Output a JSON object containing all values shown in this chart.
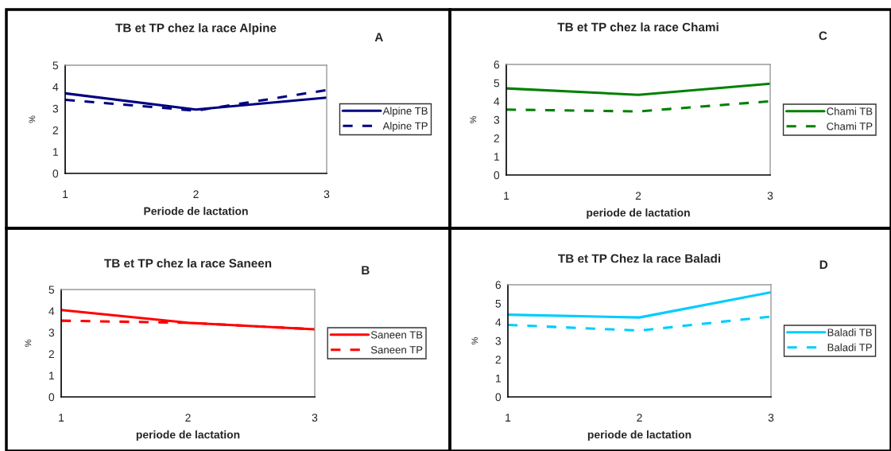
{
  "chart_data": [
    {
      "type": "line",
      "title": "TB et TP chez la race Alpine",
      "xlabel": "Periode de lactation",
      "ylabel": "%",
      "annotations": [
        "A"
      ],
      "x": [
        1,
        2,
        3
      ],
      "xlim": [
        1,
        3
      ],
      "xticks": [
        1,
        2,
        3
      ],
      "ylim": [
        0,
        5
      ],
      "yticks": [
        0,
        1,
        2,
        3,
        4,
        5
      ],
      "legend": "right",
      "series": [
        {
          "name": "Alpine TB",
          "color": "#000080",
          "line_style": "solid",
          "values": [
            3.7,
            2.95,
            3.5
          ]
        },
        {
          "name": "Alpine TP",
          "color": "#000080",
          "line_style": "dashed",
          "values": [
            3.4,
            2.9,
            3.85
          ]
        }
      ]
    },
    {
      "type": "line",
      "title": "TB et TP chez la race Chami",
      "xlabel": "periode de lactation",
      "ylabel": "%",
      "annotations": [
        "C"
      ],
      "x": [
        1,
        2,
        3
      ],
      "xlim": [
        1,
        3
      ],
      "xticks": [
        1,
        2,
        3
      ],
      "ylim": [
        0,
        6
      ],
      "yticks": [
        0,
        1,
        2,
        3,
        4,
        5,
        6
      ],
      "legend": "right",
      "series": [
        {
          "name": "Chami TB",
          "color": "#008000",
          "line_style": "solid",
          "values": [
            4.7,
            4.35,
            4.95
          ]
        },
        {
          "name": "Chami TP",
          "color": "#008000",
          "line_style": "dashed",
          "values": [
            3.55,
            3.45,
            4.0
          ]
        }
      ]
    },
    {
      "type": "line",
      "title": "TB et TP chez la race Saneen",
      "xlabel": "periode de lactation",
      "ylabel": "%",
      "annotations": [
        "B"
      ],
      "x": [
        1,
        2,
        3
      ],
      "xlim": [
        1,
        3
      ],
      "xticks": [
        1,
        2,
        3
      ],
      "ylim": [
        0,
        5
      ],
      "yticks": [
        0,
        1,
        2,
        3,
        4,
        5
      ],
      "legend": "right",
      "series": [
        {
          "name": "Saneen TB",
          "color": "#ff0000",
          "line_style": "solid",
          "values": [
            4.05,
            3.45,
            3.15
          ]
        },
        {
          "name": "Saneen TP",
          "color": "#ff0000",
          "line_style": "dashed",
          "values": [
            3.55,
            3.45,
            3.15
          ]
        }
      ]
    },
    {
      "type": "line",
      "title": "TB et TP Chez la race Baladi",
      "xlabel": "periode de lactation",
      "ylabel": "%",
      "annotations": [
        "D"
      ],
      "x": [
        1,
        2,
        3
      ],
      "xlim": [
        1,
        3
      ],
      "xticks": [
        1,
        2,
        3
      ],
      "ylim": [
        0,
        6
      ],
      "yticks": [
        0,
        1,
        2,
        3,
        4,
        5,
        6
      ],
      "legend": "right",
      "series": [
        {
          "name": "Baladi TB",
          "color": "#00ccff",
          "line_style": "solid",
          "values": [
            4.4,
            4.25,
            5.6
          ]
        },
        {
          "name": "Baladi TP",
          "color": "#00ccff",
          "line_style": "dashed",
          "values": [
            3.85,
            3.55,
            4.3
          ]
        }
      ]
    }
  ]
}
